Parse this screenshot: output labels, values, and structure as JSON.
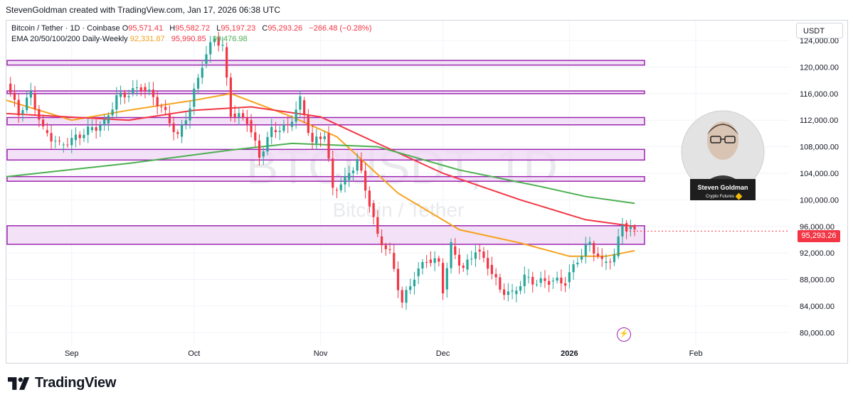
{
  "header": {
    "attribution": "StevenGoldman created with TradingView.com, Jan 17, 2026 06:38 UTC"
  },
  "legend": {
    "symbol": "Bitcoin / Tether · 1D · Coinbase",
    "open_label": "O",
    "open": "95,571.41",
    "high_label": "H",
    "high": "95,582.72",
    "low_label": "L",
    "low": "95,197.23",
    "close_label": "C",
    "close": "95,293.26",
    "change": "−266.48 (−0.28%)",
    "ema_label": "EMA 20/50/100/200 Daily-Weekly",
    "ema20": "92,331.87",
    "ema50": "95,990.85",
    "ema100": "99,476.98"
  },
  "currency": "USDT",
  "last_price": "95,293.26",
  "watermark": {
    "ticker": "BTCUSDT, 1D",
    "name": "Bitcoin / Tether"
  },
  "avatar": {
    "name": "Steven Goldman",
    "subtitle": "Crypto Futures"
  },
  "footer": {
    "brand": "TradingView"
  },
  "colors": {
    "up": "#26a69a",
    "down": "#f23645",
    "ema20": "#f7a21b",
    "ema50": "#f23645",
    "ema100": "#4caf50",
    "zone_fill": "#f0d9f5",
    "zone_stroke": "#9c27b0",
    "grid": "#f0f3fa"
  },
  "chart_data": {
    "type": "candlestick",
    "ylim": [
      78000,
      127000
    ],
    "y_ticks": [
      80000,
      84000,
      88000,
      92000,
      96000,
      100000,
      104000,
      108000,
      112000,
      116000,
      120000,
      124000
    ],
    "y_tick_labels": [
      "80,000.00",
      "84,000.00",
      "88,000.00",
      "92,000.00",
      "96,000.00",
      "100,000.00",
      "104,000.00",
      "108,000.00",
      "112,000.00",
      "116,000.00",
      "120,000.00",
      "124,000.00"
    ],
    "x_start": "2025-08-16",
    "x_end": "2026-02-24",
    "x_ticks": [
      {
        "date": "2025-09-01",
        "label": "Sep"
      },
      {
        "date": "2025-10-01",
        "label": "Oct"
      },
      {
        "date": "2025-11-01",
        "label": "Nov"
      },
      {
        "date": "2025-12-01",
        "label": "Dec"
      },
      {
        "date": "2026-01-01",
        "label": "2026"
      },
      {
        "date": "2026-02-01",
        "label": "Feb"
      }
    ],
    "series": [
      {
        "name": "close",
        "type": "candlestick",
        "points": [
          [
            "2025-08-16",
            117500
          ],
          [
            "2025-08-19",
            113000
          ],
          [
            "2025-08-22",
            116000
          ],
          [
            "2025-08-25",
            110500
          ],
          [
            "2025-08-29",
            108300
          ],
          [
            "2025-09-01",
            109000
          ],
          [
            "2025-09-05",
            110500
          ],
          [
            "2025-09-09",
            111500
          ],
          [
            "2025-09-12",
            115500
          ],
          [
            "2025-09-15",
            116000
          ],
          [
            "2025-09-18",
            117000
          ],
          [
            "2025-09-21",
            115500
          ],
          [
            "2025-09-24",
            113000
          ],
          [
            "2025-09-27",
            109500
          ],
          [
            "2025-09-30",
            114000
          ],
          [
            "2025-10-03",
            120500
          ],
          [
            "2025-10-06",
            124500
          ],
          [
            "2025-10-08",
            123000
          ],
          [
            "2025-10-10",
            113000
          ],
          [
            "2025-10-14",
            112000
          ],
          [
            "2025-10-17",
            106500
          ],
          [
            "2025-10-20",
            110500
          ],
          [
            "2025-10-24",
            111000
          ],
          [
            "2025-10-27",
            115000
          ],
          [
            "2025-10-30",
            108500
          ],
          [
            "2025-11-02",
            110000
          ],
          [
            "2025-11-04",
            101500
          ],
          [
            "2025-11-07",
            103000
          ],
          [
            "2025-11-10",
            106000
          ],
          [
            "2025-11-13",
            99500
          ],
          [
            "2025-11-15",
            94500
          ],
          [
            "2025-11-18",
            92000
          ],
          [
            "2025-11-21",
            84500
          ],
          [
            "2025-11-24",
            88500
          ],
          [
            "2025-11-27",
            91000
          ],
          [
            "2025-11-30",
            90500
          ],
          [
            "2025-12-01",
            86500
          ],
          [
            "2025-12-03",
            93000
          ],
          [
            "2025-12-06",
            89500
          ],
          [
            "2025-12-09",
            92500
          ],
          [
            "2025-12-12",
            90200
          ],
          [
            "2025-12-15",
            86500
          ],
          [
            "2025-12-18",
            85800
          ],
          [
            "2025-12-21",
            88300
          ],
          [
            "2025-12-24",
            87500
          ],
          [
            "2025-12-27",
            87800
          ],
          [
            "2025-12-31",
            87600
          ],
          [
            "2026-01-03",
            91000
          ],
          [
            "2026-01-06",
            93500
          ],
          [
            "2026-01-09",
            90500
          ],
          [
            "2026-01-12",
            91500
          ],
          [
            "2026-01-14",
            96500
          ],
          [
            "2026-01-15",
            95600
          ],
          [
            "2026-01-17",
            95293
          ]
        ]
      },
      {
        "name": "EMA 20",
        "type": "line",
        "points": [
          [
            "2025-08-16",
            115000
          ],
          [
            "2025-09-01",
            112000
          ],
          [
            "2025-09-15",
            113500
          ],
          [
            "2025-10-01",
            115000
          ],
          [
            "2025-10-10",
            116000
          ],
          [
            "2025-10-25",
            112500
          ],
          [
            "2025-11-05",
            109500
          ],
          [
            "2025-11-20",
            101000
          ],
          [
            "2025-12-05",
            95500
          ],
          [
            "2025-12-20",
            93500
          ],
          [
            "2026-01-01",
            91500
          ],
          [
            "2026-01-10",
            91500
          ],
          [
            "2026-01-17",
            92332
          ]
        ]
      },
      {
        "name": "EMA 50",
        "type": "line",
        "points": [
          [
            "2025-08-16",
            113000
          ],
          [
            "2025-09-15",
            112000
          ],
          [
            "2025-10-01",
            113500
          ],
          [
            "2025-10-15",
            114000
          ],
          [
            "2025-11-01",
            112500
          ],
          [
            "2025-11-15",
            108500
          ],
          [
            "2025-12-01",
            104000
          ],
          [
            "2025-12-20",
            100000
          ],
          [
            "2026-01-05",
            97000
          ],
          [
            "2026-01-17",
            95991
          ]
        ]
      },
      {
        "name": "EMA 100",
        "type": "line",
        "points": [
          [
            "2025-08-16",
            103500
          ],
          [
            "2025-09-15",
            105500
          ],
          [
            "2025-10-10",
            107500
          ],
          [
            "2025-10-25",
            108500
          ],
          [
            "2025-11-15",
            108000
          ],
          [
            "2025-12-05",
            104500
          ],
          [
            "2025-12-25",
            102000
          ],
          [
            "2026-01-05",
            100500
          ],
          [
            "2026-01-17",
            99477
          ]
        ]
      }
    ],
    "zones": [
      {
        "low": 120300,
        "high": 121000
      },
      {
        "low": 116000,
        "high": 116400
      },
      {
        "low": 111300,
        "high": 112400
      },
      {
        "low": 106000,
        "high": 107600
      },
      {
        "low": 102800,
        "high": 103500
      },
      {
        "low": 93300,
        "high": 96100
      }
    ]
  }
}
